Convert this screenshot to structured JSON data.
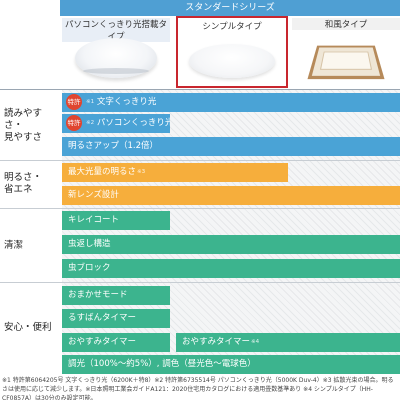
{
  "header": {
    "series_title": "スタンダードシリーズ",
    "columns": [
      {
        "label": "パソコンくっきり光搭載タイプ"
      },
      {
        "label": "シンプルタイプ"
      },
      {
        "label": "和風タイプ"
      }
    ]
  },
  "categories": {
    "readability": "読みやすさ・\n見やすさ",
    "brightness": "明るさ・\n省エネ",
    "clean": "清潔",
    "safety": "安心・便利"
  },
  "features": {
    "text_clear": {
      "badge": "特許",
      "label": "文字くっきり光",
      "note": "※1"
    },
    "pc_clear": {
      "badge": "特許",
      "label": "パソコンくっきり光",
      "note": "※2"
    },
    "bright_up": {
      "label": "明るさアップ（1.2倍）"
    },
    "max_bright": {
      "label": "最大光量の明るさ",
      "note": "※3"
    },
    "new_lens": {
      "label": "新レンズ設計"
    },
    "clean_coat": {
      "label": "キレイコート"
    },
    "bug_structure": {
      "label": "虫返し構造"
    },
    "bug_block": {
      "label": "虫ブロック"
    },
    "auto_mode": {
      "label": "おまかせモード"
    },
    "away_timer": {
      "label": "るすばんタイマー"
    },
    "sleep_timer_1": {
      "label": "おやすみタイマー"
    },
    "sleep_timer_2": {
      "label": "おやすみタイマー",
      "note": "※4"
    },
    "dimming": {
      "label": "調光（100%〜約5%）, 調色（昼光色〜電球色）"
    }
  },
  "footnote": "※1 特許第6064205号 文字くっきり光（6200K＋特8）※2 特許第6735514号 パソコンくっきり光（5000K Duv-4）※3 拡散光束の場合。明るさは使用に応じて減少します。※日本照明工業会ガイドA121：2020住宅用カタログにおける適用畳数基準あり ※4 シンプルタイプ（HH-CF0857A）は30分のみ設定可能。",
  "colors": {
    "blue": "#4aa3d6",
    "orange": "#f6ae3c",
    "green": "#3cb48e",
    "highlight": "#c8262e",
    "badge": "#e0452f"
  }
}
